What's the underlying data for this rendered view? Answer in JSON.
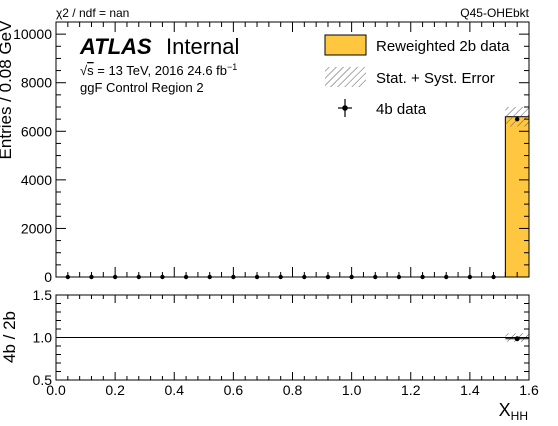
{
  "header": {
    "chi2_label": "χ2 / ndf = nan",
    "tag": "Q45-OHEbkt"
  },
  "atlas": {
    "experiment": "ATLAS",
    "status": "Internal",
    "energy_sqrt": "√",
    "energy_s": "s",
    "energy_rest": " = 13 TeV, 2016 24.6 fb",
    "energy_sup": "−1",
    "region": "ggF Control Region 2"
  },
  "legend": {
    "items": [
      {
        "label": "Reweighted 2b data",
        "kind": "fill",
        "color": "#ffc740"
      },
      {
        "label": "Stat. + Syst. Error",
        "kind": "hatch",
        "color": "#555555"
      },
      {
        "label": "4b data",
        "kind": "marker",
        "color": "#000000"
      }
    ]
  },
  "chart_data": [
    {
      "type": "bar",
      "panel": "main",
      "ylabel": "Entries / 0.08 GeV",
      "ylim": [
        0,
        10500
      ],
      "yticks": [
        0,
        2000,
        4000,
        6000,
        8000,
        10000
      ],
      "xlim": [
        0,
        1.6
      ],
      "bin_width": 0.08,
      "bin_centers": [
        0.04,
        0.12,
        0.2,
        0.28,
        0.36,
        0.44,
        0.52,
        0.6,
        0.68,
        0.76,
        0.84,
        0.92,
        1.0,
        1.08,
        1.16,
        1.24,
        1.32,
        1.4,
        1.48,
        1.56
      ],
      "series": [
        {
          "name": "Reweighted 2b data",
          "values": [
            0,
            0,
            0,
            0,
            0,
            0,
            0,
            0,
            0,
            0,
            0,
            0,
            0,
            0,
            0,
            0,
            0,
            0,
            0,
            6600
          ],
          "uncertainty": [
            0,
            0,
            0,
            0,
            0,
            0,
            0,
            0,
            0,
            0,
            0,
            0,
            0,
            0,
            0,
            0,
            0,
            0,
            0,
            400
          ]
        },
        {
          "name": "4b data",
          "values": [
            0,
            0,
            0,
            0,
            0,
            0,
            0,
            0,
            0,
            0,
            0,
            0,
            0,
            0,
            0,
            0,
            0,
            0,
            0,
            6500
          ]
        }
      ],
      "legend_position": "top-right"
    },
    {
      "type": "scatter",
      "panel": "ratio",
      "ylabel": "4b / 2b",
      "xlabel": "X",
      "xlabel_sub": "HH",
      "ylim": [
        0.5,
        1.5
      ],
      "yticks": [
        0.5,
        1.0,
        1.5
      ],
      "ytick_labels": [
        "0.5",
        "1.0",
        "1.5"
      ],
      "xticks": [
        0.0,
        0.2,
        0.4,
        0.6,
        0.8,
        1.0,
        1.2,
        1.4,
        1.6
      ],
      "xtick_labels": [
        "0.0",
        "0.2",
        "0.4",
        "0.6",
        "0.8",
        "1.0",
        "1.2",
        "1.4",
        "1.6"
      ],
      "reference_line": 1.0,
      "points": [
        {
          "x": 1.56,
          "y": 0.985
        }
      ],
      "band": {
        "x_low": 1.52,
        "x_high": 1.6,
        "y_low": 0.95,
        "y_high": 1.05
      }
    }
  ]
}
